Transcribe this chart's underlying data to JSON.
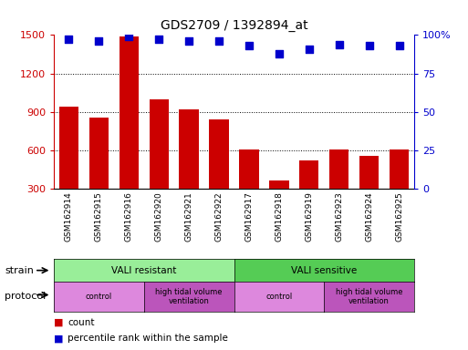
{
  "title": "GDS2709 / 1392894_at",
  "samples": [
    "GSM162914",
    "GSM162915",
    "GSM162916",
    "GSM162920",
    "GSM162921",
    "GSM162922",
    "GSM162917",
    "GSM162918",
    "GSM162919",
    "GSM162923",
    "GSM162924",
    "GSM162925"
  ],
  "counts": [
    940,
    860,
    1490,
    1000,
    920,
    840,
    610,
    370,
    520,
    610,
    560,
    610
  ],
  "percentiles": [
    97,
    96,
    99,
    97,
    96,
    96,
    93,
    88,
    91,
    94,
    93,
    93
  ],
  "bar_color": "#cc0000",
  "dot_color": "#0000cc",
  "ylim_left": [
    300,
    1500
  ],
  "ylim_right": [
    0,
    100
  ],
  "yticks_left": [
    300,
    600,
    900,
    1200,
    1500
  ],
  "yticks_right": [
    0,
    25,
    50,
    75,
    100
  ],
  "grid_lines": [
    600,
    900,
    1200
  ],
  "strain_groups": [
    {
      "label": "VALI resistant",
      "start": 0,
      "end": 6,
      "color": "#99ee99"
    },
    {
      "label": "VALI sensitive",
      "start": 6,
      "end": 12,
      "color": "#55cc55"
    }
  ],
  "protocol_groups": [
    {
      "label": "control",
      "start": 0,
      "end": 3,
      "color": "#dd88dd"
    },
    {
      "label": "high tidal volume\nventilation",
      "start": 3,
      "end": 6,
      "color": "#bb55bb"
    },
    {
      "label": "control",
      "start": 6,
      "end": 9,
      "color": "#dd88dd"
    },
    {
      "label": "high tidal volume\nventilation",
      "start": 9,
      "end": 12,
      "color": "#bb55bb"
    }
  ],
  "legend_items": [
    {
      "label": "count",
      "color": "#cc0000"
    },
    {
      "label": "percentile rank within the sample",
      "color": "#0000cc"
    }
  ],
  "strain_label": "strain",
  "protocol_label": "protocol",
  "bar_width": 0.65,
  "dot_size": 30,
  "dot_marker": "s",
  "bg_color": "#f0f0f0"
}
